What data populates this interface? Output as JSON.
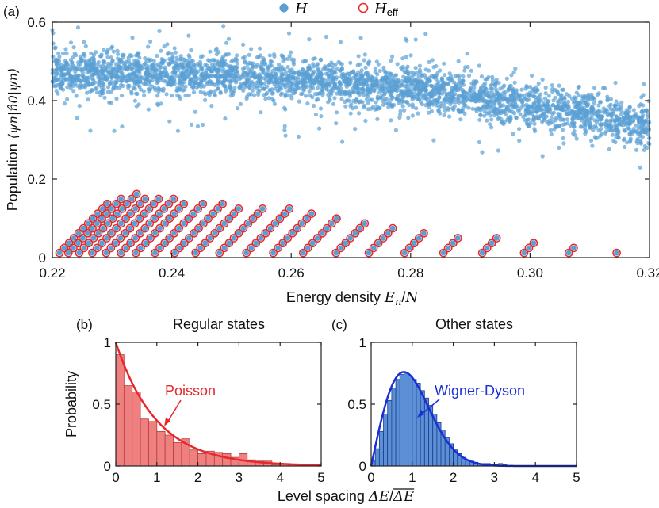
{
  "chart_data": [
    {
      "panel": "(a)",
      "type": "scatter",
      "xlabel": "Energy density E_n/N",
      "xlabel_parts": [
        "Energy density ",
        "E",
        "n",
        "/",
        "N"
      ],
      "ylabel": "Population ⟨ψ_n|n̂_0|ψ_n⟩",
      "ylabel_text": "Population",
      "ylabel_math": "⟨ψn|n̂0|ψn⟩",
      "xlim": [
        0.22,
        0.32
      ],
      "ylim": [
        0,
        0.6
      ],
      "xticks": [
        "0.22",
        "0.24",
        "0.26",
        "0.28",
        "0.30",
        "0.32"
      ],
      "xtick_values": [
        0.22,
        0.24,
        0.26,
        0.28,
        0.3,
        0.32
      ],
      "yticks": [
        "0",
        "0.2",
        "0.4",
        "0.6"
      ],
      "ytick_values": [
        0,
        0.2,
        0.4,
        0.6
      ],
      "legend_position": "top-center",
      "series": [
        {
          "name": "H",
          "marker": "filled-circle",
          "color": "#5a9fd4",
          "description_trend": [
            [
              0.22,
              0.47
            ],
            [
              0.24,
              0.47
            ],
            [
              0.26,
              0.455
            ],
            [
              0.28,
              0.43
            ],
            [
              0.3,
              0.39
            ],
            [
              0.32,
              0.34
            ]
          ]
        },
        {
          "name": "H_eff",
          "name_main": "H",
          "name_sub": "eff",
          "marker": "open-circle",
          "color": "#e8282b",
          "strands": [
            {
              "x0": 0.2212,
              "nmax": 11,
              "e0": 0.2212
            },
            {
              "x0": 0.2227,
              "nmax": 12,
              "e0": 0.2227
            },
            {
              "x0": 0.2245,
              "nmax": 13,
              "e0": 0.2245
            },
            {
              "x0": 0.2267,
              "nmax": 12,
              "e0": 0.2267
            },
            {
              "x0": 0.229,
              "nmax": 12,
              "e0": 0.229
            },
            {
              "x0": 0.2315,
              "nmax": 12,
              "e0": 0.2315
            },
            {
              "x0": 0.234,
              "nmax": 11,
              "e0": 0.234
            },
            {
              "x0": 0.2372,
              "nmax": 11,
              "e0": 0.2372
            },
            {
              "x0": 0.2405,
              "nmax": 11,
              "e0": 0.2405
            },
            {
              "x0": 0.244,
              "nmax": 10,
              "e0": 0.244
            },
            {
              "x0": 0.248,
              "nmax": 10,
              "e0": 0.248
            },
            {
              "x0": 0.2525,
              "nmax": 10,
              "e0": 0.2525
            },
            {
              "x0": 0.257,
              "nmax": 9,
              "e0": 0.257
            },
            {
              "x0": 0.262,
              "nmax": 8,
              "e0": 0.262
            },
            {
              "x0": 0.2675,
              "nmax": 7,
              "e0": 0.2675
            },
            {
              "x0": 0.273,
              "nmax": 6,
              "e0": 0.273
            },
            {
              "x0": 0.279,
              "nmax": 5,
              "e0": 0.279
            },
            {
              "x0": 0.2855,
              "nmax": 4,
              "e0": 0.2855
            },
            {
              "x0": 0.292,
              "nmax": 4,
              "e0": 0.292
            },
            {
              "x0": 0.299,
              "nmax": 3,
              "e0": 0.299
            },
            {
              "x0": 0.3065,
              "nmax": 2,
              "e0": 0.3065
            },
            {
              "x0": 0.3145,
              "nmax": 1,
              "e0": 0.3145
            }
          ],
          "strand_step_x": 0.0008,
          "strand_step_y": 0.0125,
          "strand_start_y": 0.012
        }
      ]
    },
    {
      "panel": "(b)",
      "type": "bar",
      "title": "Regular states",
      "ylabel": "Probability",
      "xlim": [
        0,
        5
      ],
      "ylim": [
        0,
        1
      ],
      "xticks": [
        "0",
        "1",
        "2",
        "3",
        "4",
        "5"
      ],
      "xtick_values": [
        0,
        1,
        2,
        3,
        4,
        5
      ],
      "yticks": [
        "0",
        "0.5",
        "1"
      ],
      "ytick_values": [
        0,
        0.5,
        1
      ],
      "bin_width": 0.2,
      "bin_starts": [
        0,
        0.2,
        0.4,
        0.6,
        0.8,
        1.0,
        1.2,
        1.4,
        1.6,
        1.8,
        2.0,
        2.2,
        2.4,
        2.6,
        2.8,
        3.0,
        3.2,
        3.4,
        3.6,
        3.8,
        4.0,
        4.2,
        4.4,
        4.6,
        4.8
      ],
      "values": [
        0.9,
        0.65,
        0.6,
        0.38,
        0.36,
        0.28,
        0.25,
        0.19,
        0.22,
        0.13,
        0.1,
        0.12,
        0.11,
        0.1,
        0.07,
        0.1,
        0.05,
        0.04,
        0.04,
        0.01,
        0.02,
        0.01,
        0.0,
        0.01,
        0.01
      ],
      "bar_color": "#f08080",
      "curve": {
        "name": "Poisson",
        "formula": "exp(-s)",
        "color": "#e8282b"
      },
      "annotation": "Poisson"
    },
    {
      "panel": "(c)",
      "type": "bar",
      "title": "Other states",
      "xlim": [
        0,
        5
      ],
      "ylim": [
        0,
        1
      ],
      "xticks": [
        "0",
        "1",
        "2",
        "3",
        "4",
        "5"
      ],
      "xtick_values": [
        0,
        1,
        2,
        3,
        4,
        5
      ],
      "yticks": [
        "0",
        "0.5",
        "1"
      ],
      "ytick_values": [
        0,
        0.5,
        1
      ],
      "bin_width": 0.1,
      "bin_starts": [
        0,
        0.1,
        0.2,
        0.3,
        0.4,
        0.5,
        0.6,
        0.7,
        0.8,
        0.9,
        1.0,
        1.1,
        1.2,
        1.3,
        1.4,
        1.5,
        1.6,
        1.7,
        1.8,
        1.9,
        2.0,
        2.1,
        2.2,
        2.3,
        2.4,
        2.5,
        2.6,
        2.7,
        2.8,
        2.9,
        3.0,
        3.1,
        3.2
      ],
      "values": [
        0.04,
        0.14,
        0.28,
        0.42,
        0.53,
        0.63,
        0.7,
        0.74,
        0.76,
        0.73,
        0.7,
        0.67,
        0.61,
        0.55,
        0.49,
        0.42,
        0.35,
        0.29,
        0.23,
        0.18,
        0.13,
        0.1,
        0.07,
        0.05,
        0.04,
        0.03,
        0.02,
        0.02,
        0.02,
        0.01,
        0.01,
        0.02,
        0.01
      ],
      "bar_color": "#5b8fd6",
      "curve": {
        "name": "Wigner-Dyson",
        "formula": "(pi/2) s exp(-pi s^2/4)",
        "color": "#1a2fd8"
      },
      "annotation": "Wigner-Dyson"
    }
  ],
  "shared_xlabel": "Level spacing ΔE/ΔE̅",
  "shared_xlabel_parts": [
    "Level spacing ",
    "ΔE",
    "/",
    "ΔE"
  ]
}
